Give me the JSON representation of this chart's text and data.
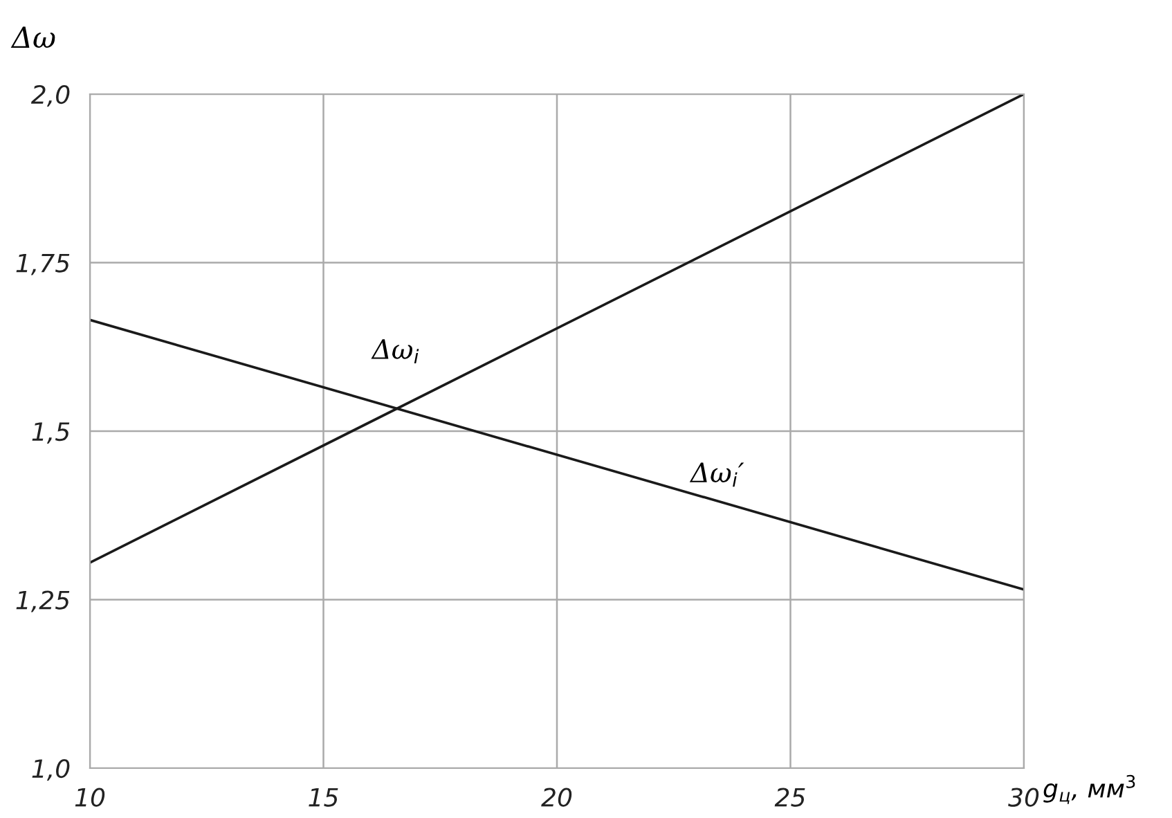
{
  "chart_data": {
    "type": "line",
    "xlabel": "g$_{ц}$, мм$^{3}$",
    "ylabel": "Δω",
    "x": [
      10,
      30
    ],
    "series": [
      {
        "name": "Δω$_{i}$",
        "color": "#1a1a1a",
        "values": [
          1.305,
          2.0
        ]
      },
      {
        "name": "Δω$_{i}$′",
        "color": "#1a1a1a",
        "values": [
          1.665,
          1.265
        ]
      }
    ],
    "xlim": [
      10,
      30
    ],
    "xticks": [
      10,
      15,
      20,
      25,
      30
    ],
    "ylim": [
      1.0,
      2.0
    ],
    "yticks": [
      {
        "value": 1.0,
        "label": "1,0"
      },
      {
        "value": 1.25,
        "label": "1,25"
      },
      {
        "value": 1.5,
        "label": "1,5"
      },
      {
        "value": 1.75,
        "label": "1,75"
      },
      {
        "value": 2.0,
        "label": "2,0"
      }
    ],
    "grid": true,
    "marker": "none",
    "line_style": "solid"
  }
}
